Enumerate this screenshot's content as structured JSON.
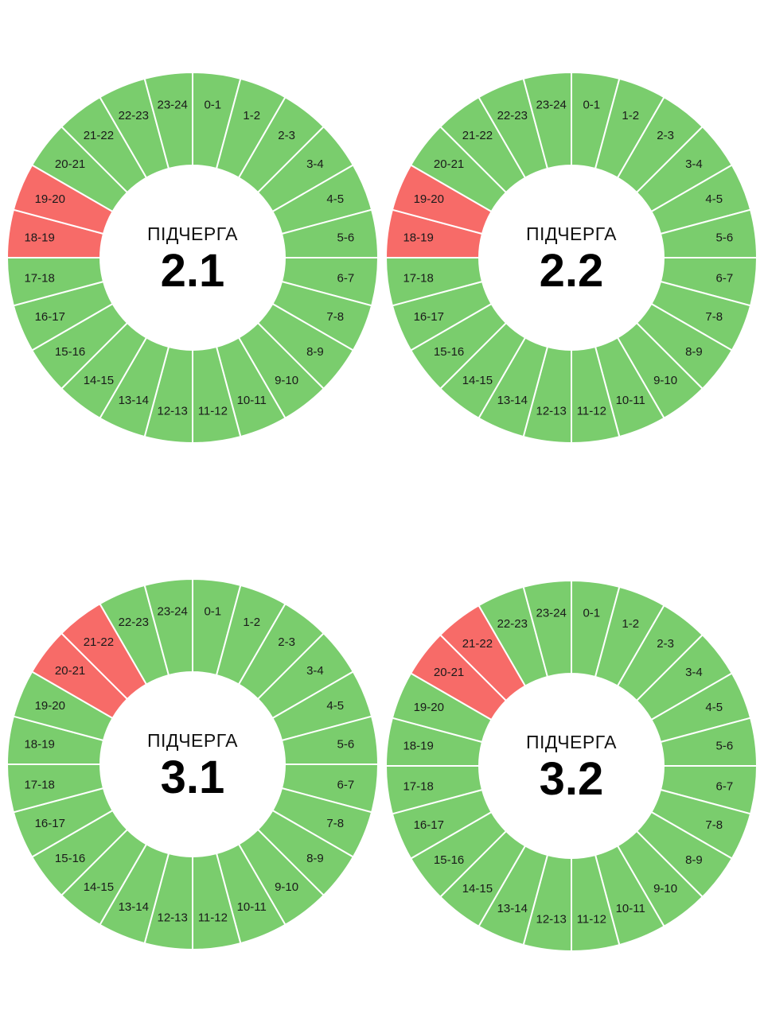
{
  "colors": {
    "on": "#7acd6d",
    "off": "#f76b68",
    "divider": "#ffffff",
    "background": "#ffffff"
  },
  "hour_labels": [
    "0-1",
    "1-2",
    "2-3",
    "3-4",
    "4-5",
    "5-6",
    "6-7",
    "7-8",
    "8-9",
    "9-10",
    "10-11",
    "11-12",
    "12-13",
    "13-14",
    "14-15",
    "15-16",
    "16-17",
    "17-18",
    "18-19",
    "19-20",
    "20-21",
    "21-22",
    "22-23",
    "23-24"
  ],
  "schedules": [
    {
      "caption": "ПІДЧЕРГА",
      "number": "2.1",
      "outage_hours": [
        18,
        19
      ]
    },
    {
      "caption": "ПІДЧЕРГА",
      "number": "2.2",
      "outage_hours": [
        18,
        19
      ]
    },
    {
      "caption": "ПІДЧЕРГА",
      "number": "3.1",
      "outage_hours": [
        20,
        21
      ]
    },
    {
      "caption": "ПІДЧЕРГА",
      "number": "3.2",
      "outage_hours": [
        20,
        21
      ]
    }
  ]
}
